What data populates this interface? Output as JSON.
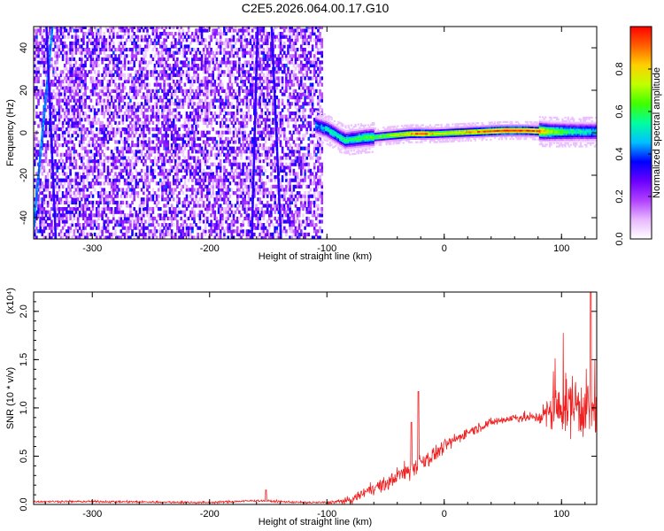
{
  "figure": {
    "title": "C2E5.2026.064.00.17.G10"
  },
  "chart_data": [
    {
      "type": "heatmap",
      "title": "C2E5.2026.064.00.17.G10",
      "xlabel": "Height of straight line (km)",
      "ylabel": "Frequency (Hz)",
      "xlim": [
        -350,
        130
      ],
      "ylim": [
        -50,
        50
      ],
      "x_ticks": [
        -300,
        -200,
        -100,
        0,
        100
      ],
      "y_ticks": [
        -40,
        -20,
        0,
        20,
        40
      ],
      "colorbar": {
        "label": "Normalized spectral amplitude",
        "range": [
          0.0,
          1.0
        ],
        "ticks": [
          0.0,
          0.2,
          0.4,
          0.6,
          0.8
        ],
        "colormap": [
          "#ffffff",
          "#e8b8ff",
          "#b040ff",
          "#6a00ff",
          "#0000ff",
          "#00c0ff",
          "#00ffa0",
          "#40ff00",
          "#c0ff00",
          "#ffd000",
          "#ff6000",
          "#ff0000"
        ]
      },
      "features": {
        "noise_region_x": [
          -350,
          -105
        ],
        "noise_frequency_range": [
          -50,
          50
        ],
        "noise_amplitude_range": [
          0.05,
          0.35
        ],
        "ridge_lines": [
          {
            "x_start": -352,
            "x_end": -335,
            "freq_start": -50,
            "freq_end": 50,
            "amplitude": 0.4
          },
          {
            "x_start": -332,
            "x_end": -340,
            "freq_start": -50,
            "freq_end": 50,
            "amplitude": 0.3
          },
          {
            "x_start": -165,
            "x_end": -160,
            "freq_start": -50,
            "freq_end": 50,
            "amplitude": 0.3
          },
          {
            "x_start": -140,
            "x_end": -148,
            "freq_start": -50,
            "freq_end": 50,
            "amplitude": 0.3
          }
        ],
        "blob": {
          "x_center": -235,
          "freq_center": -3,
          "amplitude": 0.3
        },
        "signal_band": {
          "x_range": [
            -110,
            130
          ],
          "center_freq": [
            [
              -110,
              4
            ],
            [
              -100,
              2
            ],
            [
              -85,
              -3
            ],
            [
              -70,
              -2
            ],
            [
              -50,
              -1
            ],
            [
              -30,
              0
            ],
            [
              -10,
              0
            ],
            [
              10,
              0.5
            ],
            [
              30,
              1
            ],
            [
              50,
              1.5
            ],
            [
              70,
              1.5
            ],
            [
              90,
              1
            ],
            [
              110,
              1
            ],
            [
              130,
              1
            ]
          ],
          "peak_amplitude": [
            [
              -110,
              0.45
            ],
            [
              -90,
              0.55
            ],
            [
              -70,
              0.6
            ],
            [
              -50,
              0.7
            ],
            [
              -30,
              0.85
            ],
            [
              -20,
              0.95
            ],
            [
              -10,
              0.8
            ],
            [
              0,
              0.75
            ],
            [
              20,
              0.85
            ],
            [
              40,
              0.95
            ],
            [
              60,
              1.0
            ],
            [
              80,
              0.9
            ],
            [
              90,
              0.7
            ],
            [
              110,
              0.55
            ],
            [
              130,
              0.5
            ]
          ]
        }
      }
    },
    {
      "type": "line",
      "xlabel": "Height of straight line (km)",
      "ylabel": "SNR (10 * v/v)",
      "y_multiplier": "(x10⁴)",
      "xlim": [
        -350,
        130
      ],
      "ylim": [
        0,
        2.2
      ],
      "x_ticks": [
        -300,
        -200,
        -100,
        0,
        100
      ],
      "y_ticks": [
        0.0,
        0.5,
        1.0,
        1.5,
        2.0
      ],
      "series": [
        {
          "color": "#ee2222",
          "envelope": [
            [
              -350,
              0.03
            ],
            [
              -300,
              0.03
            ],
            [
              -200,
              0.02
            ],
            [
              -160,
              0.04
            ],
            [
              -120,
              0.02
            ],
            [
              -100,
              0.02
            ],
            [
              -80,
              0.04
            ],
            [
              -60,
              0.18
            ],
            [
              -50,
              0.2
            ],
            [
              -40,
              0.3
            ],
            [
              -30,
              0.35
            ],
            [
              -20,
              0.45
            ],
            [
              -10,
              0.5
            ],
            [
              0,
              0.6
            ],
            [
              20,
              0.75
            ],
            [
              40,
              0.85
            ],
            [
              60,
              0.9
            ],
            [
              80,
              0.9
            ],
            [
              90,
              0.95
            ],
            [
              100,
              1.0
            ],
            [
              110,
              1.05
            ],
            [
              120,
              1.0
            ],
            [
              130,
              0.95
            ]
          ],
          "noise_amplitude": [
            [
              -350,
              0.02
            ],
            [
              -100,
              0.02
            ],
            [
              -60,
              0.12
            ],
            [
              -20,
              0.2
            ],
            [
              0,
              0.12
            ],
            [
              40,
              0.08
            ],
            [
              80,
              0.1
            ],
            [
              90,
              0.35
            ],
            [
              110,
              0.6
            ],
            [
              130,
              0.6
            ]
          ],
          "spikes": [
            {
              "x": -22,
              "y": 1.17
            },
            {
              "x": -28,
              "y": 0.85
            },
            {
              "x": -152,
              "y": 0.15
            },
            {
              "x": 125,
              "y": 2.2
            }
          ]
        }
      ]
    }
  ]
}
